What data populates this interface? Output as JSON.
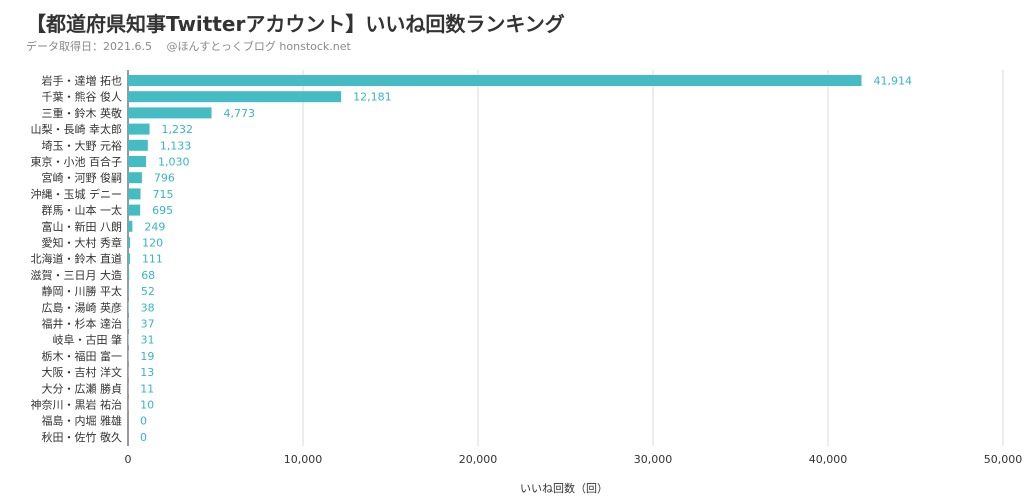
{
  "header": {
    "title": "【都道府県知事Twitterアカウント】いいね回数ランキング",
    "subtitle": "データ取得日：2021.6.5　 @ほんすとっくブログ honstock.net"
  },
  "colors": {
    "bar": "#45bcc3",
    "value_label": "#35b7c0",
    "grid": "#d9d9d9"
  },
  "chart_data": {
    "type": "bar",
    "orientation": "horizontal",
    "title": "【都道府県知事Twitterアカウント】いいね回数ランキング",
    "subtitle": "データ取得日：2021.6.5　 @ほんすとっくブログ honstock.net",
    "xlabel": "いいね回数（回）",
    "ylabel": "",
    "xlim": [
      0,
      50000
    ],
    "xticks": [
      "0",
      "10,000",
      "20,000",
      "30,000",
      "40,000",
      "50,000"
    ],
    "grid": true,
    "legend": "none",
    "categories": [
      "岩手・達増 拓也",
      "千葉・熊谷 俊人",
      "三重・鈴木 英敬",
      "山梨・長崎 幸太郎",
      "埼玉・大野 元裕",
      "東京・小池 百合子",
      "宮崎・河野 俊嗣",
      "沖縄・玉城 デニー",
      "群馬・山本 一太",
      "富山・新田 八朗",
      "愛知・大村 秀章",
      "北海道・鈴木 直道",
      "滋賀・三日月 大造",
      "静岡・川勝 平太",
      "広島・湯崎 英彦",
      "福井・杉本 達治",
      "岐阜・古田 肇",
      "栃木・福田 富一",
      "大阪・吉村 洋文",
      "大分・広瀬 勝貞",
      "神奈川・黒岩 祐治",
      "福島・内堀 雅雄",
      "秋田・佐竹 敬久"
    ],
    "values": [
      41914,
      12181,
      4773,
      1232,
      1133,
      1030,
      796,
      715,
      695,
      249,
      120,
      111,
      68,
      52,
      38,
      37,
      31,
      19,
      13,
      11,
      10,
      0,
      0
    ],
    "value_labels": [
      "41,914",
      "12,181",
      "4,773",
      "1,232",
      "1,133",
      "1,030",
      "796",
      "715",
      "695",
      "249",
      "120",
      "111",
      "68",
      "52",
      "38",
      "37",
      "31",
      "19",
      "13",
      "11",
      "10",
      "0",
      "0"
    ]
  }
}
